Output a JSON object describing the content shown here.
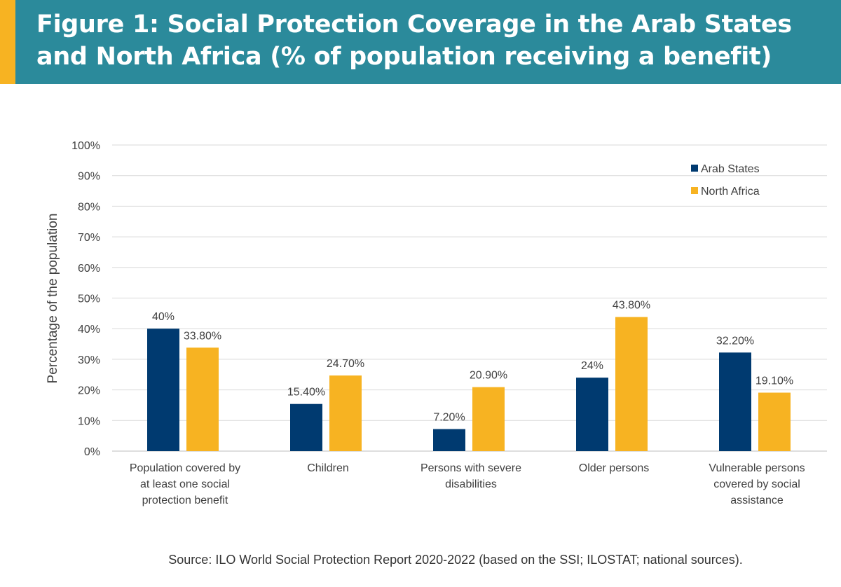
{
  "header": {
    "title": "Figure 1: Social Protection Coverage in the Arab States and North Africa (% of population receiving a benefit)"
  },
  "source_note": "Source: ILO World Social Protection Report 2020-2022 (based on the SSI; ILOSTAT; national sources).",
  "colors": {
    "header_bg": "#2b8a9b",
    "header_accent": "#f7b322",
    "arab_states": "#003a70",
    "north_africa": "#f7b322"
  },
  "chart_data": {
    "type": "bar",
    "title": "",
    "xlabel": "",
    "ylabel": "Percentage of the population",
    "ylim": [
      0,
      100
    ],
    "yticks": [
      {
        "value": 0,
        "label": "0%"
      },
      {
        "value": 10,
        "label": "10%"
      },
      {
        "value": 20,
        "label": "20%"
      },
      {
        "value": 30,
        "label": "30%"
      },
      {
        "value": 40,
        "label": "40%"
      },
      {
        "value": 50,
        "label": "50%"
      },
      {
        "value": 60,
        "label": "60%"
      },
      {
        "value": 70,
        "label": "70%"
      },
      {
        "value": 80,
        "label": "80%"
      },
      {
        "value": 90,
        "label": "90%"
      },
      {
        "value": 100,
        "label": "100%"
      }
    ],
    "grid": true,
    "legend_position": "top-right",
    "categories": [
      [
        "Population covered by",
        "at least one social",
        "protection benefit"
      ],
      [
        "Children"
      ],
      [
        "Persons with severe",
        "disabilities"
      ],
      [
        "Older persons"
      ],
      [
        "Vulnerable persons",
        "covered by social",
        "assistance"
      ]
    ],
    "series": [
      {
        "name": "Arab States",
        "color": "#003a70",
        "values": [
          40,
          15.4,
          7.2,
          24,
          32.2
        ],
        "labels": [
          "40%",
          "15.40%",
          "7.20%",
          "24%",
          "32.20%"
        ]
      },
      {
        "name": "North Africa",
        "color": "#f7b322",
        "values": [
          33.8,
          24.7,
          20.9,
          43.8,
          19.1
        ],
        "labels": [
          "33.80%",
          "24.70%",
          "20.90%",
          "43.80%",
          "19.10%"
        ]
      }
    ]
  }
}
